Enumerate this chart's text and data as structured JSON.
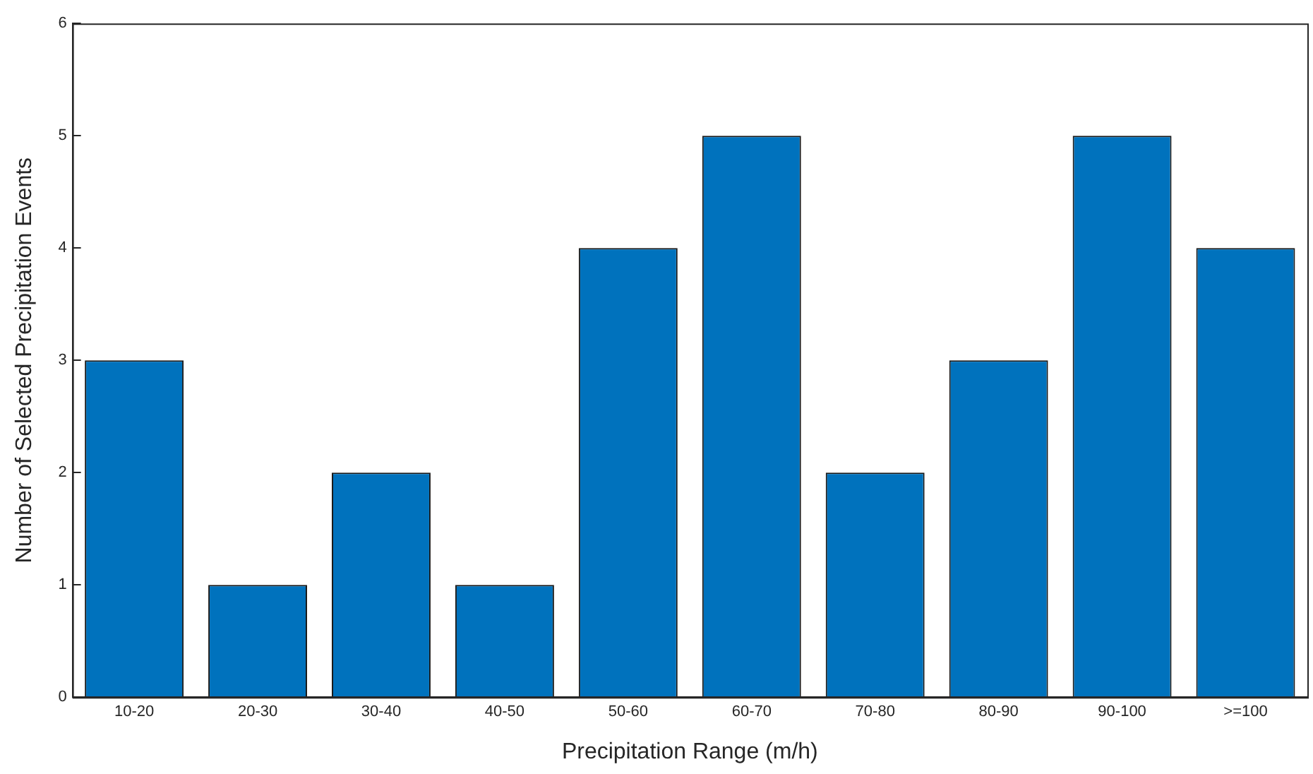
{
  "chart_data": {
    "type": "bar",
    "xlabel": "Precipitation Range (m/h)",
    "ylabel": "Number of Selected Precipitation Events",
    "categories": [
      "10-20",
      "20-30",
      "30-40",
      "40-50",
      "50-60",
      "60-70",
      "70-80",
      "80-90",
      "90-100",
      ">=100"
    ],
    "values": [
      3,
      1,
      2,
      1,
      4,
      5,
      2,
      3,
      5,
      4
    ],
    "color": "#0072bd",
    "ylim": [
      0,
      6
    ],
    "yticks": [
      0,
      1,
      2,
      3,
      4,
      5,
      6
    ],
    "grid": false,
    "legend": false
  }
}
